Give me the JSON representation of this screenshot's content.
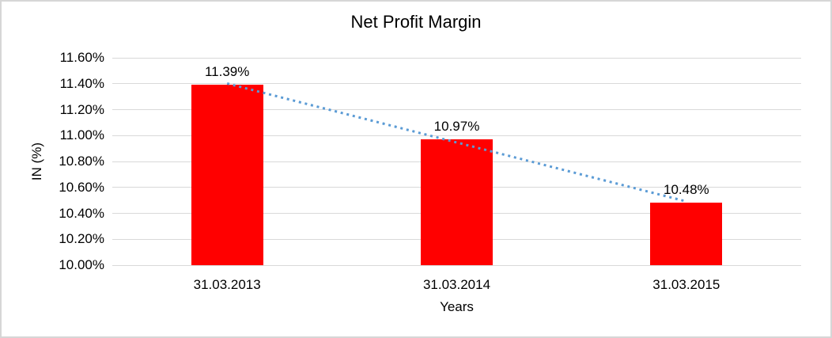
{
  "chart_data": {
    "type": "bar",
    "title": "Net Profit Margin",
    "xlabel": "Years",
    "ylabel": "IN (%)",
    "categories": [
      "31.03.2013",
      "31.03.2014",
      "31.03.2015"
    ],
    "values": [
      11.39,
      10.97,
      10.48
    ],
    "data_labels": [
      "11.39%",
      "10.97%",
      "10.48%"
    ],
    "ytick_labels": [
      "10.00%",
      "10.20%",
      "10.40%",
      "10.60%",
      "10.80%",
      "11.00%",
      "11.20%",
      "11.40%",
      "11.60%"
    ],
    "ylim": [
      10.0,
      11.6
    ],
    "ytick_step": 0.2,
    "grid": true,
    "legend_position": "none",
    "bar_color": "#ff0000",
    "gridline_color": "#d9d9d9",
    "axis_line_color": "#d9d9d9",
    "text_color": "#000000",
    "trendline": {
      "type": "linear",
      "style": "dotted",
      "color": "#5b9bd5"
    }
  }
}
